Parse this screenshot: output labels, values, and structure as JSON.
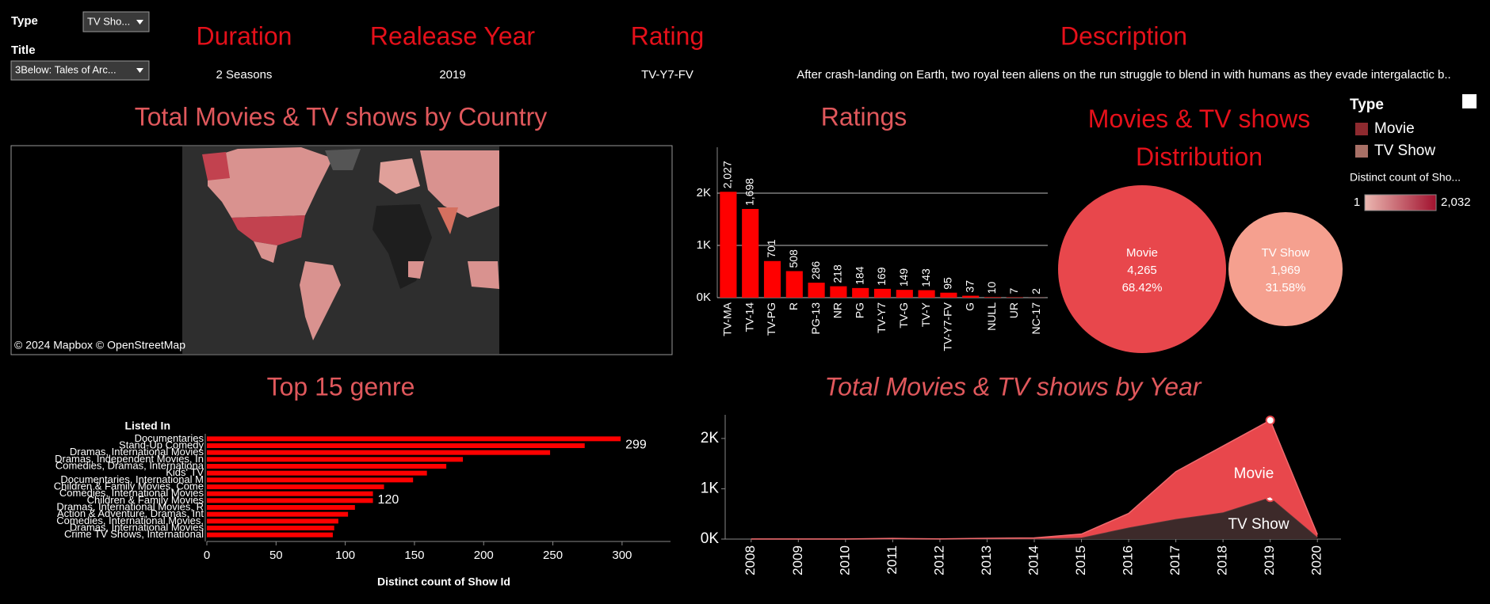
{
  "filters": {
    "type_label": "Type",
    "type_value": "TV Sho...",
    "title_label": "Title",
    "title_value": "3Below: Tales of Arc..."
  },
  "details": {
    "headers": [
      "Duration",
      "Realease Year",
      "Rating",
      "Description"
    ],
    "values": [
      "2 Seasons",
      "2019",
      "TV-Y7-FV",
      "After crash-landing on Earth, two royal teen aliens on the run struggle to blend in with humans as they evade intergalactic b.."
    ]
  },
  "legends": {
    "type_title": "Type",
    "items": [
      {
        "name": "Movie",
        "color": "#8e2a2f"
      },
      {
        "name": "TV Show",
        "color": "#a87066"
      }
    ],
    "scale_title": "Distinct count of Sho...",
    "scale_min": 1,
    "scale_max": {
      "value": 2032,
      "label": "2,032"
    },
    "scale_colors": [
      "#ebb8b1",
      "#a1112e"
    ]
  },
  "chart_data": [
    {
      "type": "map",
      "title": "Total Movies & TV shows by Country",
      "attribution": "© 2024 Mapbox  © OpenStreetMap"
    },
    {
      "type": "bar",
      "title": "Ratings",
      "categories": [
        "TV-MA",
        "TV-14",
        "TV-PG",
        "R",
        "PG-13",
        "NR",
        "PG",
        "TV-Y7",
        "TV-G",
        "TV-Y",
        "TV-Y7-FV",
        "G",
        "NULL",
        "UR",
        "NC-17"
      ],
      "values": [
        2027,
        1698,
        701,
        508,
        286,
        218,
        184,
        169,
        149,
        143,
        95,
        37,
        10,
        7,
        2
      ],
      "value_labels": [
        "2,027",
        "1,698",
        "701",
        "508",
        "286",
        "218",
        "184",
        "169",
        "149",
        "143",
        "95",
        "37",
        "10",
        "7",
        "2"
      ],
      "color": "#ff0000",
      "ylim": [
        0,
        2880
      ],
      "yticks": [
        {
          "value": 0,
          "label": "0K"
        },
        {
          "value": 1000,
          "label": "1K"
        },
        {
          "value": 2000,
          "label": "2K"
        }
      ],
      "grid": true
    },
    {
      "type": "bubble",
      "title": "Movies & TV shows Distribution",
      "categories": [
        "Movie",
        "TV Show"
      ],
      "values": [
        4265,
        1969
      ],
      "value_labels": [
        "4,265",
        "1,969"
      ],
      "shares": [
        68.42,
        31.58
      ],
      "share_labels": [
        "68.42%",
        "31.58%"
      ],
      "colors": [
        "#e8474c",
        "#f5a08f"
      ]
    },
    {
      "type": "hbar",
      "title": "Top 15 genre",
      "ylabel": "Listed In",
      "xlabel": "Distinct count of Show Id",
      "categories": [
        "Documentaries",
        "Stand-Up Comedy",
        "Dramas, International Movies",
        "Dramas, Independent Movies, In",
        "Comedies, Dramas, Internationa",
        "Kids' TV",
        "Documentaries, International M",
        "Children & Family Movies, Come",
        "Comedies, International Movies",
        "Children & Family Movies",
        "Dramas, International Movies, R",
        "Action & Adventure, Dramas, Int",
        "Comedies, International Movies,",
        "Dramas, International Movies",
        "Crime TV Shows, International"
      ],
      "values": [
        299,
        273,
        248,
        185,
        173,
        159,
        149,
        128,
        120,
        120,
        107,
        102,
        95,
        92,
        91
      ],
      "value_labels": [
        "299",
        null,
        null,
        null,
        null,
        null,
        null,
        null,
        "120",
        null,
        null,
        null,
        null,
        null,
        null
      ],
      "color": "#ff0000",
      "xlim": [
        0,
        335
      ],
      "xticks": [
        0,
        50,
        100,
        150,
        200,
        250,
        300
      ]
    },
    {
      "type": "area",
      "title": "Total Movies & TV shows by Year",
      "stacked": true,
      "x": [
        2008,
        2009,
        2010,
        2011,
        2012,
        2013,
        2014,
        2015,
        2016,
        2017,
        2018,
        2019,
        2020
      ],
      "xlim": [
        2007.45,
        2020.5
      ],
      "xticks": [
        2008,
        2009,
        2010,
        2011,
        2012,
        2013,
        2014,
        2015,
        2016,
        2017,
        2018,
        2019,
        2020
      ],
      "ylim": [
        0,
        2470
      ],
      "yticks": [
        {
          "value": 0,
          "label": "0K"
        },
        {
          "value": 1000,
          "label": "1K"
        },
        {
          "value": 2000,
          "label": "2K"
        }
      ],
      "highlight": 2019,
      "series": [
        {
          "name": "TV Show",
          "color": "#3d2a2a",
          "values": [
            0,
            0,
            0,
            0,
            0,
            5,
            5,
            30,
            230,
            400,
            530,
            830,
            40
          ]
        },
        {
          "name": "Movie",
          "color": "#e8474c",
          "values": [
            2,
            2,
            1,
            13,
            3,
            10,
            19,
            70,
            280,
            940,
            1320,
            1530,
            50
          ]
        }
      ]
    }
  ]
}
